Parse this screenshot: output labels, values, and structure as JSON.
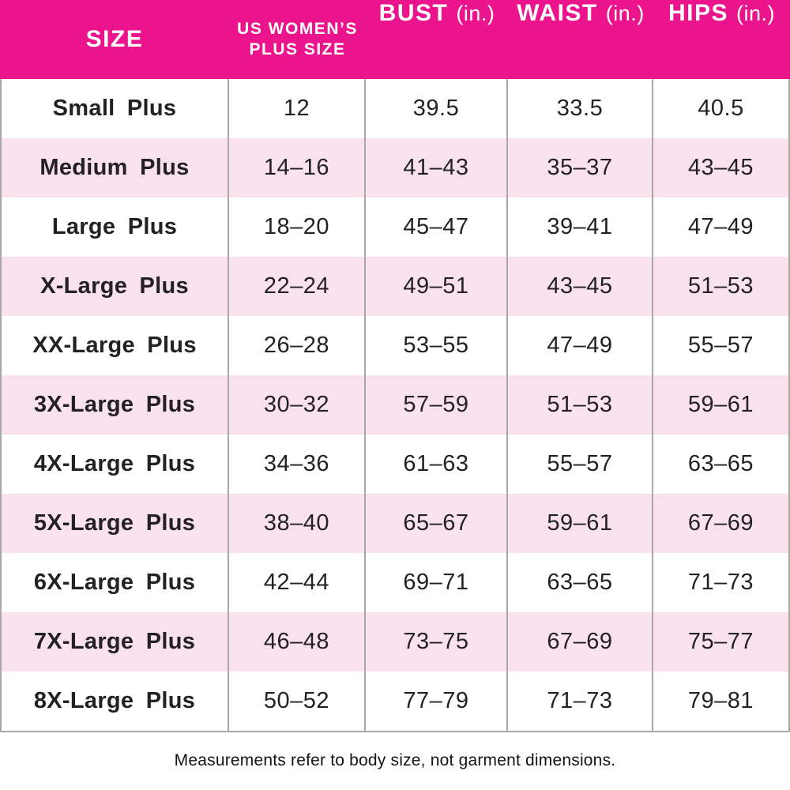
{
  "colors": {
    "header_bg": "#EB148C",
    "row_bg": "#FFFFFF",
    "row_alt_bg": "#F9E2EE",
    "divider": "#A8A8A8",
    "header_text": "#FFFFFF",
    "body_text": "#232123"
  },
  "header": {
    "size": "SIZE",
    "plus_line1": "US WOMEN’S",
    "plus_line2": "PLUS SIZE",
    "bust": "BUST",
    "bust_unit": "(in.)",
    "waist": "WAIST",
    "waist_unit": "(in.)",
    "hips": "HIPS",
    "hips_unit": "(in.)"
  },
  "chart_data": {
    "type": "table",
    "title": "US Women's Plus Size chart",
    "columns": [
      "SIZE",
      "US WOMEN'S PLUS SIZE",
      "BUST (in.)",
      "WAIST (in.)",
      "HIPS (in.)"
    ],
    "rows": [
      [
        "Small Plus",
        "12",
        "39.5",
        "33.5",
        "40.5"
      ],
      [
        "Medium Plus",
        "14–16",
        "41–43",
        "35–37",
        "43–45"
      ],
      [
        "Large Plus",
        "18–20",
        "45–47",
        "39–41",
        "47–49"
      ],
      [
        "X-Large Plus",
        "22–24",
        "49–51",
        "43–45",
        "51–53"
      ],
      [
        "XX-Large Plus",
        "26–28",
        "53–55",
        "47–49",
        "55–57"
      ],
      [
        "3X-Large Plus",
        "30–32",
        "57–59",
        "51–53",
        "59–61"
      ],
      [
        "4X-Large Plus",
        "34–36",
        "61–63",
        "55–57",
        "63–65"
      ],
      [
        "5X-Large Plus",
        "38–40",
        "65–67",
        "59–61",
        "67–69"
      ],
      [
        "6X-Large Plus",
        "42–44",
        "69–71",
        "63–65",
        "71–73"
      ],
      [
        "7X-Large Plus",
        "46–48",
        "73–75",
        "67–69",
        "75–77"
      ],
      [
        "8X-Large Plus",
        "50–52",
        "77–79",
        "71–73",
        "79–81"
      ]
    ]
  },
  "footer": {
    "note": "Measurements refer to body size, not garment dimensions."
  }
}
